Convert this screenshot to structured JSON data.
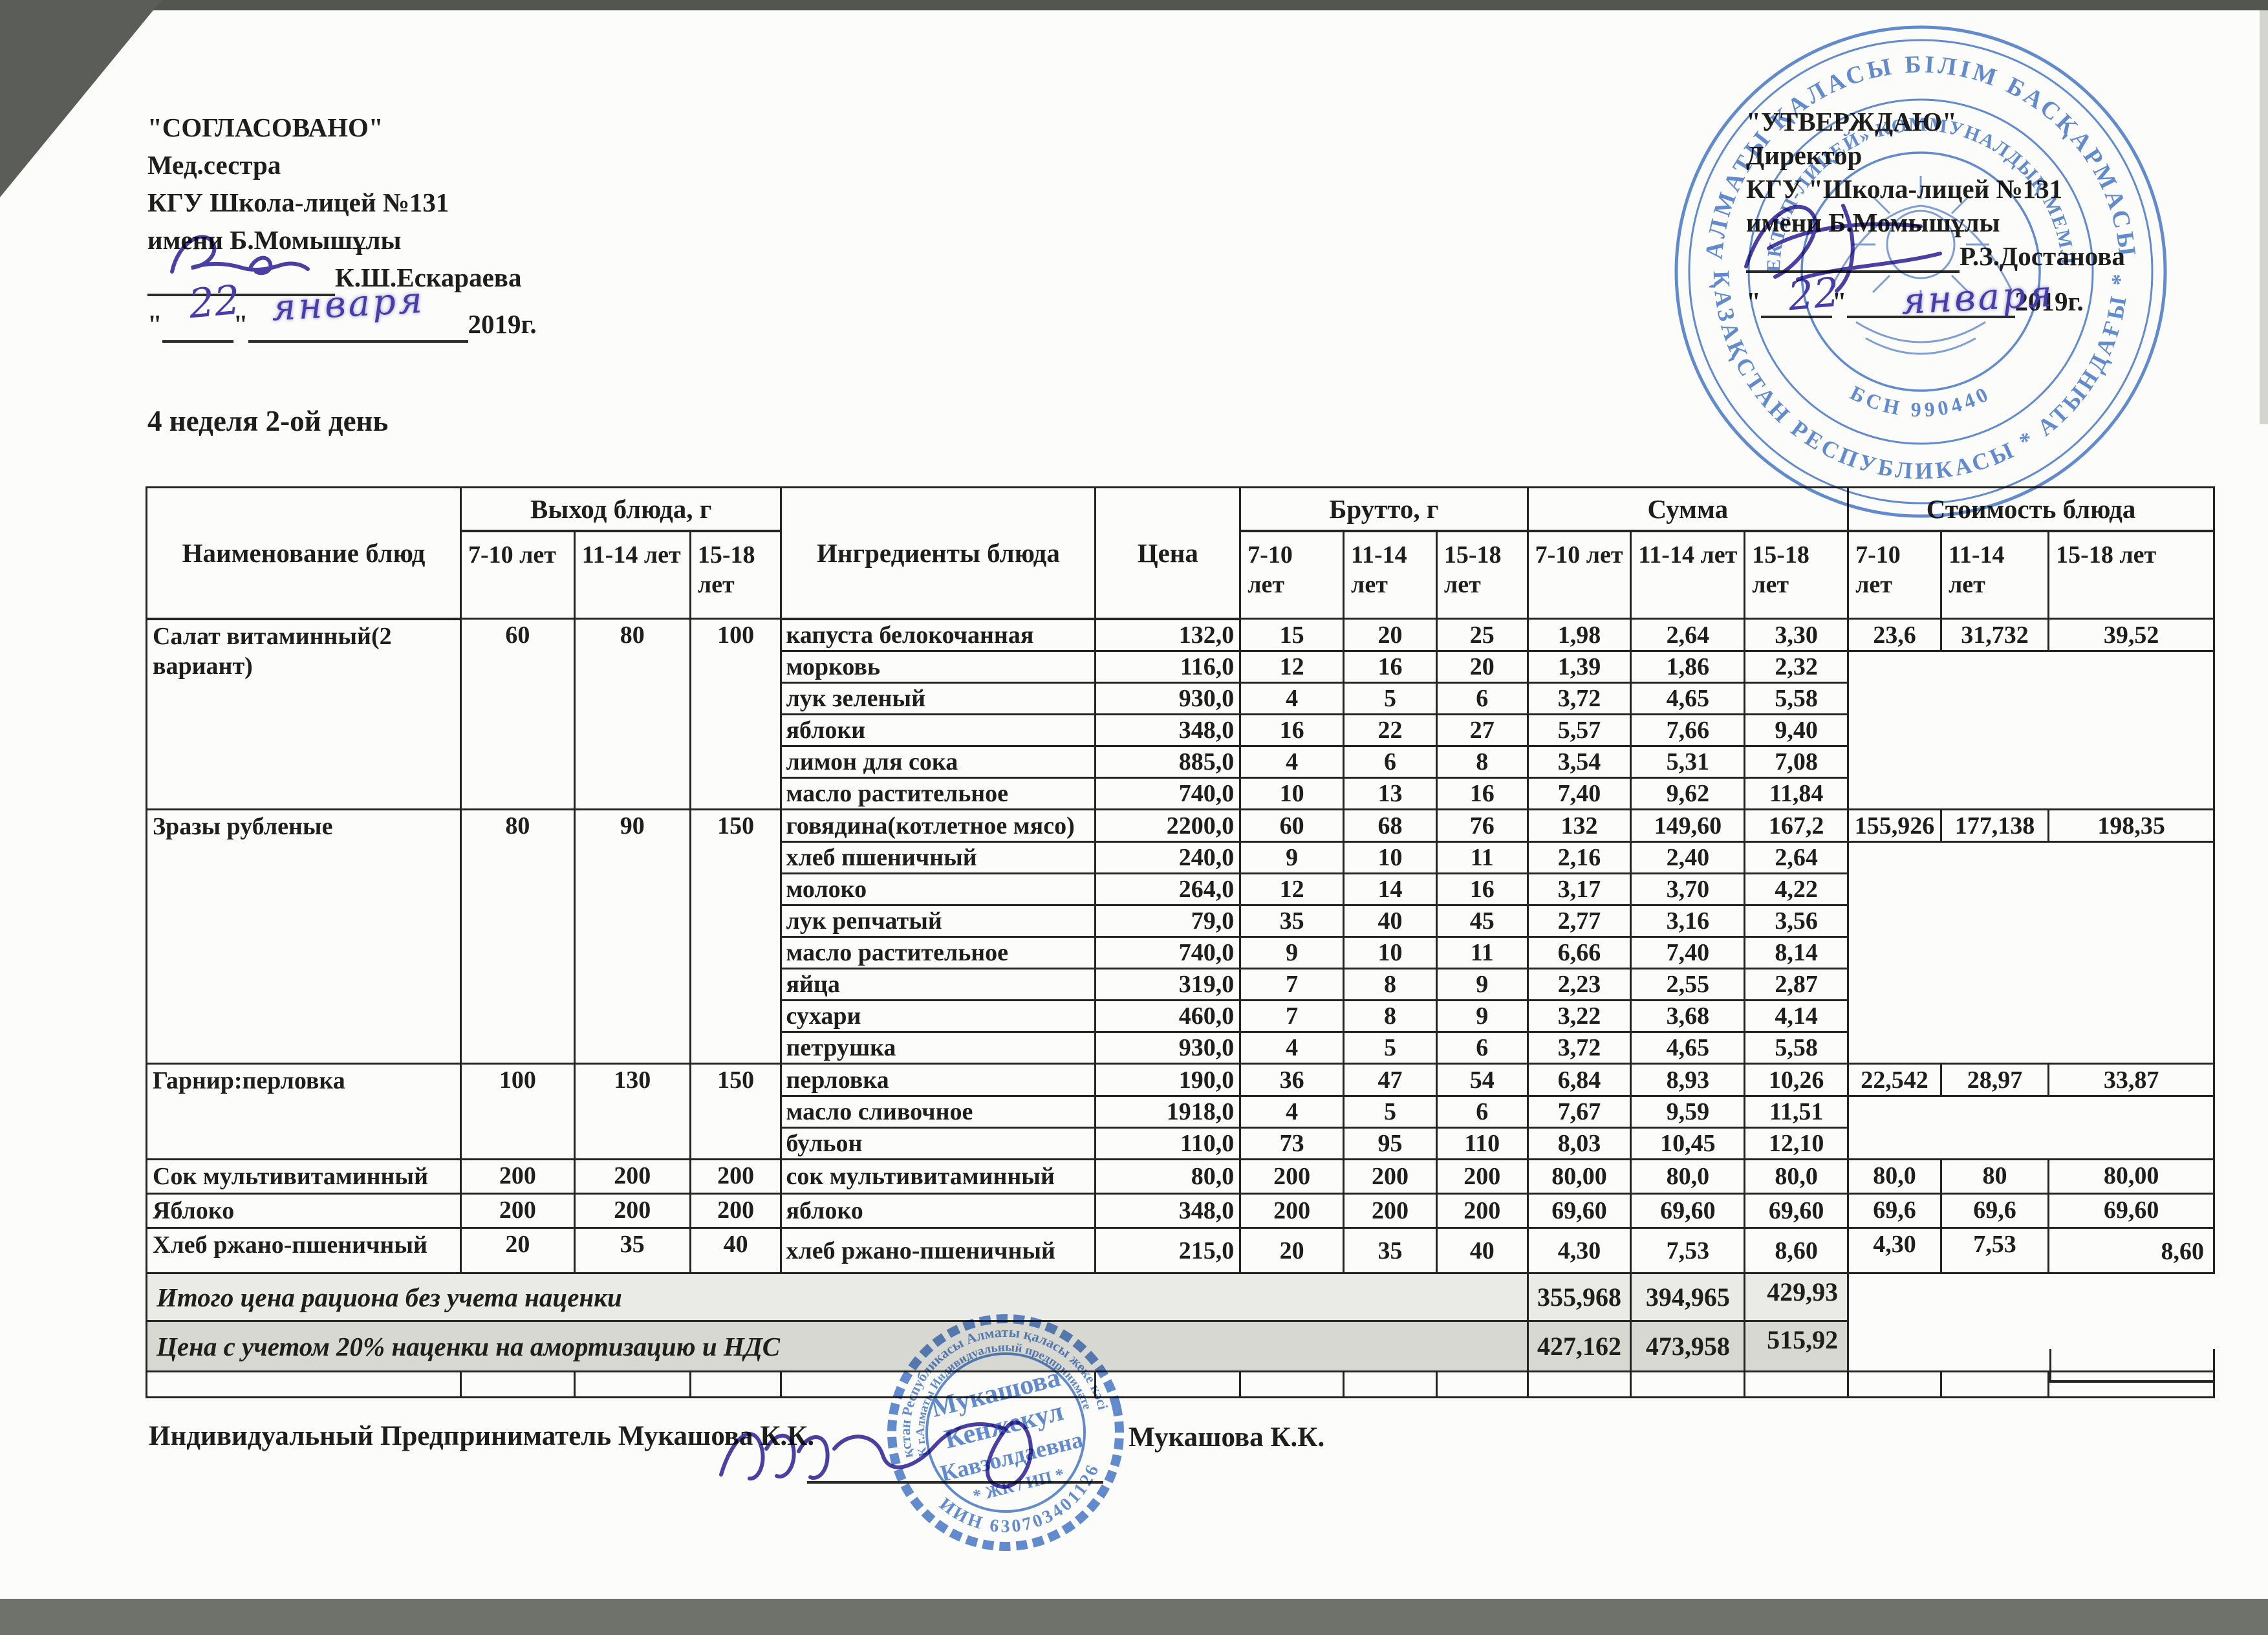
{
  "left_block": {
    "title": "\"СОГЛАСОВАНО\"",
    "role": "Мед.сестра",
    "org1": "КГУ Школа-лицей №131",
    "org2": "имени Б.Момышұлы",
    "name": "К.Ш.Ескараева",
    "quote_open": "\"",
    "quote_close": "\"",
    "day": "22",
    "month": "января",
    "year": "2019г."
  },
  "right_block": {
    "title": "\"УТВЕРЖДАЮ\"",
    "role": "Директор",
    "org1": "КГУ \"Школа-лицей №131",
    "org2": "имени Б.Момышұлы",
    "name": "Р.З.Достанова",
    "quote_open": "\"",
    "quote_close": "\"",
    "day": "22",
    "month": "января",
    "year": "2019г."
  },
  "doc_title": "4 неделя 2-ой день",
  "table": {
    "col_dish": "Наименование блюд",
    "col_output": "Выход блюда, г",
    "col_ing": "Ингредиенты блюда",
    "col_price": "Цена",
    "col_brutto": "Брутто, г",
    "col_sum": "Сумма",
    "col_cost": "Стоимость блюда",
    "ages_output": [
      "7-10 лет",
      "11-14 лет",
      "15-18 лет"
    ],
    "ages_brutto": [
      "7-10\nлет",
      "11-14\nлет",
      "15-18\nлет"
    ],
    "ages_sum": [
      "7-10 лет",
      "11-14 лет",
      "15-18\nлет"
    ],
    "ages_cost": [
      "7-10 лет",
      "11-14 лет",
      "15-18 лет"
    ],
    "groups": [
      {
        "name": "Салат витаминный(2 вариант)",
        "output": [
          "60",
          "80",
          "100"
        ],
        "cost": [
          "23,6",
          "31,732",
          "39,52"
        ],
        "rows": [
          {
            "ing": "капуста белокочанная",
            "price": "132,0",
            "brutto": [
              "15",
              "20",
              "25"
            ],
            "sum": [
              "1,98",
              "2,64",
              "3,30"
            ]
          },
          {
            "ing": "морковь",
            "price": "116,0",
            "brutto": [
              "12",
              "16",
              "20"
            ],
            "sum": [
              "1,39",
              "1,86",
              "2,32"
            ]
          },
          {
            "ing": "лук зеленый",
            "price": "930,0",
            "brutto": [
              "4",
              "5",
              "6"
            ],
            "sum": [
              "3,72",
              "4,65",
              "5,58"
            ]
          },
          {
            "ing": "яблоки",
            "price": "348,0",
            "brutto": [
              "16",
              "22",
              "27"
            ],
            "sum": [
              "5,57",
              "7,66",
              "9,40"
            ]
          },
          {
            "ing": "лимон для сока",
            "price": "885,0",
            "brutto": [
              "4",
              "6",
              "8"
            ],
            "sum": [
              "3,54",
              "5,31",
              "7,08"
            ]
          },
          {
            "ing": "масло растительное",
            "price": "740,0",
            "brutto": [
              "10",
              "13",
              "16"
            ],
            "sum": [
              "7,40",
              "9,62",
              "11,84"
            ]
          }
        ]
      },
      {
        "name": "Зразы рубленые",
        "output": [
          "80",
          "90",
          "150"
        ],
        "cost": [
          "155,926",
          "177,138",
          "198,35"
        ],
        "rows": [
          {
            "ing": "говядина(котлетное мясо)",
            "price": "2200,0",
            "brutto": [
              "60",
              "68",
              "76"
            ],
            "sum": [
              "132",
              "149,60",
              "167,2"
            ]
          },
          {
            "ing": "хлеб пшеничный",
            "price": "240,0",
            "brutto": [
              "9",
              "10",
              "11"
            ],
            "sum": [
              "2,16",
              "2,40",
              "2,64"
            ]
          },
          {
            "ing": "молоко",
            "price": "264,0",
            "brutto": [
              "12",
              "14",
              "16"
            ],
            "sum": [
              "3,17",
              "3,70",
              "4,22"
            ]
          },
          {
            "ing": "лук репчатый",
            "price": "79,0",
            "brutto": [
              "35",
              "40",
              "45"
            ],
            "sum": [
              "2,77",
              "3,16",
              "3,56"
            ]
          },
          {
            "ing": "масло растительное",
            "price": "740,0",
            "brutto": [
              "9",
              "10",
              "11"
            ],
            "sum": [
              "6,66",
              "7,40",
              "8,14"
            ]
          },
          {
            "ing": "яйца",
            "price": "319,0",
            "brutto": [
              "7",
              "8",
              "9"
            ],
            "sum": [
              "2,23",
              "2,55",
              "2,87"
            ]
          },
          {
            "ing": "сухари",
            "price": "460,0",
            "brutto": [
              "7",
              "8",
              "9"
            ],
            "sum": [
              "3,22",
              "3,68",
              "4,14"
            ]
          },
          {
            "ing": "петрушка",
            "price": "930,0",
            "brutto": [
              "4",
              "5",
              "6"
            ],
            "sum": [
              "3,72",
              "4,65",
              "5,58"
            ]
          }
        ]
      },
      {
        "name": "Гарнир:перловка",
        "output": [
          "100",
          "130",
          "150"
        ],
        "cost": [
          "22,542",
          "28,97",
          "33,87"
        ],
        "rows": [
          {
            "ing": "перловка",
            "price": "190,0",
            "brutto": [
              "36",
              "47",
              "54"
            ],
            "sum": [
              "6,84",
              "8,93",
              "10,26"
            ]
          },
          {
            "ing": "масло сливочное",
            "price": "1918,0",
            "brutto": [
              "4",
              "5",
              "6"
            ],
            "sum": [
              "7,67",
              "9,59",
              "11,51"
            ]
          },
          {
            "ing": "бульон",
            "price": "110,0",
            "brutto": [
              "73",
              "95",
              "110"
            ],
            "sum": [
              "8,03",
              "10,45",
              "12,10"
            ]
          }
        ]
      },
      {
        "name": "Сок мультивитаминный",
        "output": [
          "200",
          "200",
          "200"
        ],
        "cost": [
          "80,0",
          "80",
          "80,00"
        ],
        "rows": [
          {
            "ing": "сок мультивитаминный",
            "price": "80,0",
            "brutto": [
              "200",
              "200",
              "200"
            ],
            "sum": [
              "80,00",
              "80,0",
              "80,0"
            ]
          }
        ]
      },
      {
        "name": "Яблоко",
        "output": [
          "200",
          "200",
          "200"
        ],
        "cost": [
          "69,6",
          "69,6",
          "69,60"
        ],
        "rows": [
          {
            "ing": "яблоко",
            "price": "348,0",
            "brutto": [
              "200",
              "200",
              "200"
            ],
            "sum": [
              "69,60",
              "69,60",
              "69,60"
            ]
          }
        ]
      },
      {
        "name": "Хлеб ржано-пшеничный",
        "output": [
          "20",
          "35",
          "40"
        ],
        "cost": [
          "4,30",
          "7,53",
          "8,60"
        ],
        "rows": [
          {
            "ing": "хлеб ржано-пшеничный",
            "price": "215,0",
            "brutto": [
              "20",
              "35",
              "40"
            ],
            "sum": [
              "4,30",
              "7,53",
              "8,60"
            ]
          }
        ]
      }
    ],
    "totals": [
      {
        "label": "Итого цена рациона без учета наценки",
        "values": [
          "355,968",
          "394,965",
          "429,93"
        ]
      },
      {
        "label": "Цена с учетом 20% наценки на амортизацию и НДС",
        "values": [
          "427,162",
          "473,958",
          "515,92"
        ]
      }
    ]
  },
  "footer": {
    "label": "Индивидуальный Предприниматель Мукашова К.К.",
    "signed": "Мукашова К.К."
  },
  "stamp_top": {
    "ring_outer_top": "АЛМАТЫ ҚАЛАСЫ БІЛІМ БАСҚАРМАСЫ",
    "ring_outer_bottom": "ҚАЗАҚСТАН РЕСПУБЛИКАСЫ * АТЫНДАҒЫ *",
    "ring_inner_top": "«№131 МЕКТЕП-ЛИЦЕЙ» КОММУНАЛДЫҚ МЕМЛЕКЕТТІК",
    "ring_inner_bottom": "БСН 990440"
  },
  "stamp_bottom": {
    "name_line1": "Мукашова",
    "name_line2": "Кенжекул",
    "name_line3": "Кавзолдаевна",
    "center_bottom": "* ЖК / ИП *",
    "ring_top": "Қазақстан Республикасы Алматы қаласы жеке кәсіпкер",
    "ring_mid": "РК г.Алматы Индивидуальный предприниматель",
    "ring_bottom": "ИИН 630703401126"
  },
  "colors": {
    "stamp_blue": "#4d7dcb",
    "ink_violet": "#4b3fa5",
    "table_line": "#242424",
    "shade_light": "#eaeae6",
    "shade_dark": "#d8d8d2"
  }
}
